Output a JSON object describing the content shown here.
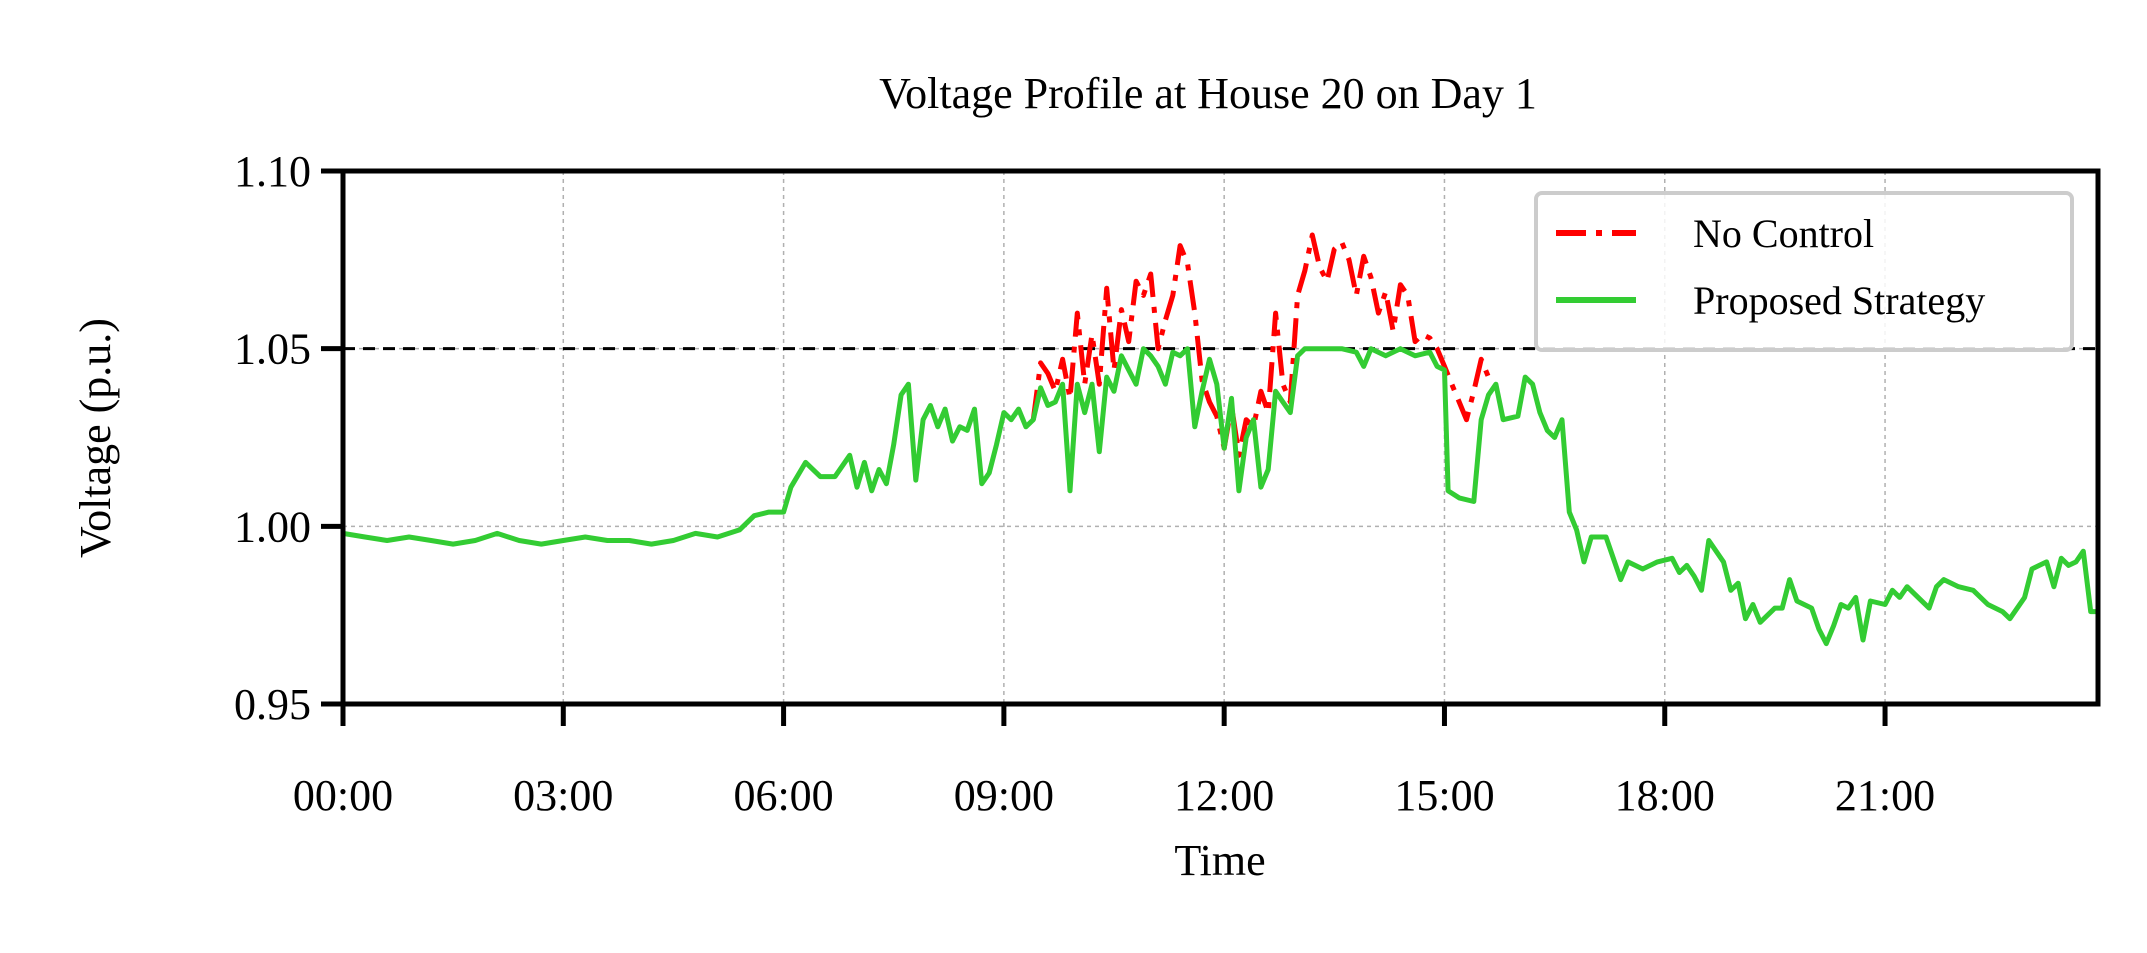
{
  "chart_data": {
    "type": "line",
    "title": "Voltage Profile at House 20 on Day 1",
    "xlabel": "Time",
    "ylabel": "Voltage (p.u.)",
    "xlim": [
      0,
      23.9
    ],
    "ylim": [
      0.95,
      1.1
    ],
    "x_ticks": [
      0,
      3,
      6,
      9,
      12,
      15,
      18,
      21
    ],
    "x_tick_labels": [
      "00:00",
      "03:00",
      "06:00",
      "09:00",
      "12:00",
      "15:00",
      "18:00",
      "21:00"
    ],
    "y_ticks": [
      0.95,
      1.0,
      1.05,
      1.1
    ],
    "y_tick_labels": [
      "0.95",
      "1.00",
      "1.05",
      "1.10"
    ],
    "grid": true,
    "legend_position": "top-right",
    "reference_line": {
      "y": 1.05,
      "style": "dashed",
      "color": "#000000"
    },
    "series": [
      {
        "name": "No Control",
        "color": "#ff0000",
        "style": "dashdot",
        "points": [
          [
            9.4,
            1.03
          ],
          [
            9.5,
            1.046
          ],
          [
            9.6,
            1.043
          ],
          [
            9.7,
            1.038
          ],
          [
            9.8,
            1.047
          ],
          [
            9.9,
            1.036
          ],
          [
            10.0,
            1.06
          ],
          [
            10.1,
            1.04
          ],
          [
            10.2,
            1.054
          ],
          [
            10.3,
            1.04
          ],
          [
            10.4,
            1.067
          ],
          [
            10.5,
            1.044
          ],
          [
            10.6,
            1.061
          ],
          [
            10.7,
            1.052
          ],
          [
            10.8,
            1.069
          ],
          [
            10.9,
            1.065
          ],
          [
            11.0,
            1.071
          ],
          [
            11.1,
            1.05
          ],
          [
            11.2,
            1.058
          ],
          [
            11.3,
            1.065
          ],
          [
            11.4,
            1.079
          ],
          [
            11.5,
            1.074
          ],
          [
            11.6,
            1.06
          ],
          [
            11.7,
            1.041
          ],
          [
            11.8,
            1.035
          ],
          [
            11.9,
            1.031
          ],
          [
            12.0,
            1.022
          ],
          [
            12.1,
            1.034
          ],
          [
            12.2,
            1.02
          ],
          [
            12.3,
            1.03
          ],
          [
            12.4,
            1.028
          ],
          [
            12.5,
            1.038
          ],
          [
            12.6,
            1.032
          ],
          [
            12.7,
            1.06
          ],
          [
            12.8,
            1.04
          ],
          [
            12.9,
            1.035
          ],
          [
            13.0,
            1.065
          ],
          [
            13.1,
            1.072
          ],
          [
            13.2,
            1.082
          ],
          [
            13.3,
            1.073
          ],
          [
            13.4,
            1.069
          ],
          [
            13.5,
            1.078
          ],
          [
            13.6,
            1.08
          ],
          [
            13.7,
            1.075
          ],
          [
            13.8,
            1.065
          ],
          [
            13.9,
            1.076
          ],
          [
            14.0,
            1.07
          ],
          [
            14.1,
            1.06
          ],
          [
            14.2,
            1.066
          ],
          [
            14.3,
            1.055
          ],
          [
            14.4,
            1.068
          ],
          [
            14.5,
            1.065
          ],
          [
            14.6,
            1.052
          ],
          [
            14.7,
            1.054
          ],
          [
            14.8,
            1.053
          ],
          [
            14.9,
            1.05
          ],
          [
            15.0,
            1.045
          ],
          [
            15.1,
            1.04
          ],
          [
            15.2,
            1.035
          ],
          [
            15.3,
            1.03
          ],
          [
            15.4,
            1.038
          ],
          [
            15.5,
            1.047
          ],
          [
            15.6,
            1.042
          ]
        ]
      },
      {
        "name": "Proposed Strategy",
        "color": "#33cc33",
        "style": "solid",
        "points": [
          [
            0,
            0.998
          ],
          [
            0.3,
            0.997
          ],
          [
            0.6,
            0.996
          ],
          [
            0.9,
            0.997
          ],
          [
            1.2,
            0.996
          ],
          [
            1.5,
            0.995
          ],
          [
            1.8,
            0.996
          ],
          [
            2.1,
            0.998
          ],
          [
            2.4,
            0.996
          ],
          [
            2.7,
            0.995
          ],
          [
            3.0,
            0.996
          ],
          [
            3.3,
            0.997
          ],
          [
            3.6,
            0.996
          ],
          [
            3.9,
            0.996
          ],
          [
            4.2,
            0.995
          ],
          [
            4.5,
            0.996
          ],
          [
            4.8,
            0.998
          ],
          [
            5.1,
            0.997
          ],
          [
            5.4,
            0.999
          ],
          [
            5.6,
            1.003
          ],
          [
            5.8,
            1.004
          ],
          [
            6.0,
            1.004
          ],
          [
            6.1,
            1.011
          ],
          [
            6.3,
            1.018
          ],
          [
            6.5,
            1.014
          ],
          [
            6.7,
            1.014
          ],
          [
            6.9,
            1.02
          ],
          [
            7.0,
            1.011
          ],
          [
            7.1,
            1.018
          ],
          [
            7.2,
            1.01
          ],
          [
            7.3,
            1.016
          ],
          [
            7.4,
            1.012
          ],
          [
            7.5,
            1.023
          ],
          [
            7.6,
            1.037
          ],
          [
            7.7,
            1.04
          ],
          [
            7.8,
            1.013
          ],
          [
            7.9,
            1.03
          ],
          [
            8.0,
            1.034
          ],
          [
            8.1,
            1.028
          ],
          [
            8.2,
            1.033
          ],
          [
            8.3,
            1.024
          ],
          [
            8.4,
            1.028
          ],
          [
            8.5,
            1.027
          ],
          [
            8.6,
            1.033
          ],
          [
            8.7,
            1.012
          ],
          [
            8.8,
            1.015
          ],
          [
            8.9,
            1.023
          ],
          [
            9.0,
            1.032
          ],
          [
            9.1,
            1.03
          ],
          [
            9.2,
            1.033
          ],
          [
            9.3,
            1.028
          ],
          [
            9.4,
            1.03
          ],
          [
            9.5,
            1.039
          ],
          [
            9.6,
            1.034
          ],
          [
            9.7,
            1.035
          ],
          [
            9.8,
            1.04
          ],
          [
            9.9,
            1.01
          ],
          [
            10.0,
            1.04
          ],
          [
            10.1,
            1.032
          ],
          [
            10.2,
            1.04
          ],
          [
            10.3,
            1.021
          ],
          [
            10.4,
            1.042
          ],
          [
            10.5,
            1.038
          ],
          [
            10.6,
            1.048
          ],
          [
            10.7,
            1.044
          ],
          [
            10.8,
            1.04
          ],
          [
            10.9,
            1.05
          ],
          [
            11.0,
            1.048
          ],
          [
            11.1,
            1.045
          ],
          [
            11.2,
            1.04
          ],
          [
            11.3,
            1.049
          ],
          [
            11.4,
            1.048
          ],
          [
            11.5,
            1.05
          ],
          [
            11.6,
            1.028
          ],
          [
            11.7,
            1.038
          ],
          [
            11.8,
            1.047
          ],
          [
            11.9,
            1.04
          ],
          [
            12.0,
            1.022
          ],
          [
            12.1,
            1.036
          ],
          [
            12.2,
            1.01
          ],
          [
            12.3,
            1.025
          ],
          [
            12.4,
            1.03
          ],
          [
            12.5,
            1.011
          ],
          [
            12.6,
            1.016
          ],
          [
            12.7,
            1.038
          ],
          [
            12.8,
            1.035
          ],
          [
            12.9,
            1.032
          ],
          [
            13.0,
            1.048
          ],
          [
            13.1,
            1.05
          ],
          [
            13.2,
            1.05
          ],
          [
            13.4,
            1.05
          ],
          [
            13.6,
            1.05
          ],
          [
            13.8,
            1.049
          ],
          [
            13.9,
            1.045
          ],
          [
            14.0,
            1.05
          ],
          [
            14.2,
            1.048
          ],
          [
            14.4,
            1.05
          ],
          [
            14.6,
            1.048
          ],
          [
            14.8,
            1.049
          ],
          [
            14.9,
            1.045
          ],
          [
            15.0,
            1.044
          ],
          [
            15.05,
            1.01
          ],
          [
            15.2,
            1.008
          ],
          [
            15.4,
            1.007
          ],
          [
            15.5,
            1.03
          ],
          [
            15.6,
            1.037
          ],
          [
            15.7,
            1.04
          ],
          [
            15.8,
            1.03
          ],
          [
            16.0,
            1.031
          ],
          [
            16.1,
            1.042
          ],
          [
            16.2,
            1.04
          ],
          [
            16.3,
            1.032
          ],
          [
            16.4,
            1.027
          ],
          [
            16.5,
            1.025
          ],
          [
            16.6,
            1.03
          ],
          [
            16.7,
            1.004
          ],
          [
            16.8,
            0.999
          ],
          [
            16.9,
            0.99
          ],
          [
            17.0,
            0.997
          ],
          [
            17.2,
            0.997
          ],
          [
            17.4,
            0.985
          ],
          [
            17.5,
            0.99
          ],
          [
            17.7,
            0.988
          ],
          [
            17.9,
            0.99
          ],
          [
            18.1,
            0.991
          ],
          [
            18.2,
            0.987
          ],
          [
            18.3,
            0.989
          ],
          [
            18.4,
            0.986
          ],
          [
            18.5,
            0.982
          ],
          [
            18.6,
            0.996
          ],
          [
            18.8,
            0.99
          ],
          [
            18.9,
            0.982
          ],
          [
            19.0,
            0.984
          ],
          [
            19.1,
            0.974
          ],
          [
            19.2,
            0.978
          ],
          [
            19.3,
            0.973
          ],
          [
            19.5,
            0.977
          ],
          [
            19.6,
            0.977
          ],
          [
            19.7,
            0.985
          ],
          [
            19.8,
            0.979
          ],
          [
            20.0,
            0.977
          ],
          [
            20.1,
            0.971
          ],
          [
            20.2,
            0.967
          ],
          [
            20.3,
            0.972
          ],
          [
            20.4,
            0.978
          ],
          [
            20.5,
            0.977
          ],
          [
            20.6,
            0.98
          ],
          [
            20.7,
            0.968
          ],
          [
            20.8,
            0.979
          ],
          [
            21.0,
            0.978
          ],
          [
            21.1,
            0.982
          ],
          [
            21.2,
            0.98
          ],
          [
            21.3,
            0.983
          ],
          [
            21.4,
            0.981
          ],
          [
            21.6,
            0.977
          ],
          [
            21.7,
            0.983
          ],
          [
            21.8,
            0.985
          ],
          [
            22.0,
            0.983
          ],
          [
            22.2,
            0.982
          ],
          [
            22.4,
            0.978
          ],
          [
            22.6,
            0.976
          ],
          [
            22.7,
            0.974
          ],
          [
            22.9,
            0.98
          ],
          [
            23.0,
            0.988
          ],
          [
            23.1,
            0.989
          ],
          [
            23.2,
            0.99
          ],
          [
            23.3,
            0.983
          ],
          [
            23.4,
            0.991
          ],
          [
            23.5,
            0.989
          ],
          [
            23.6,
            0.99
          ],
          [
            23.7,
            0.993
          ],
          [
            23.8,
            0.976
          ],
          [
            23.9,
            0.976
          ]
        ]
      }
    ]
  }
}
